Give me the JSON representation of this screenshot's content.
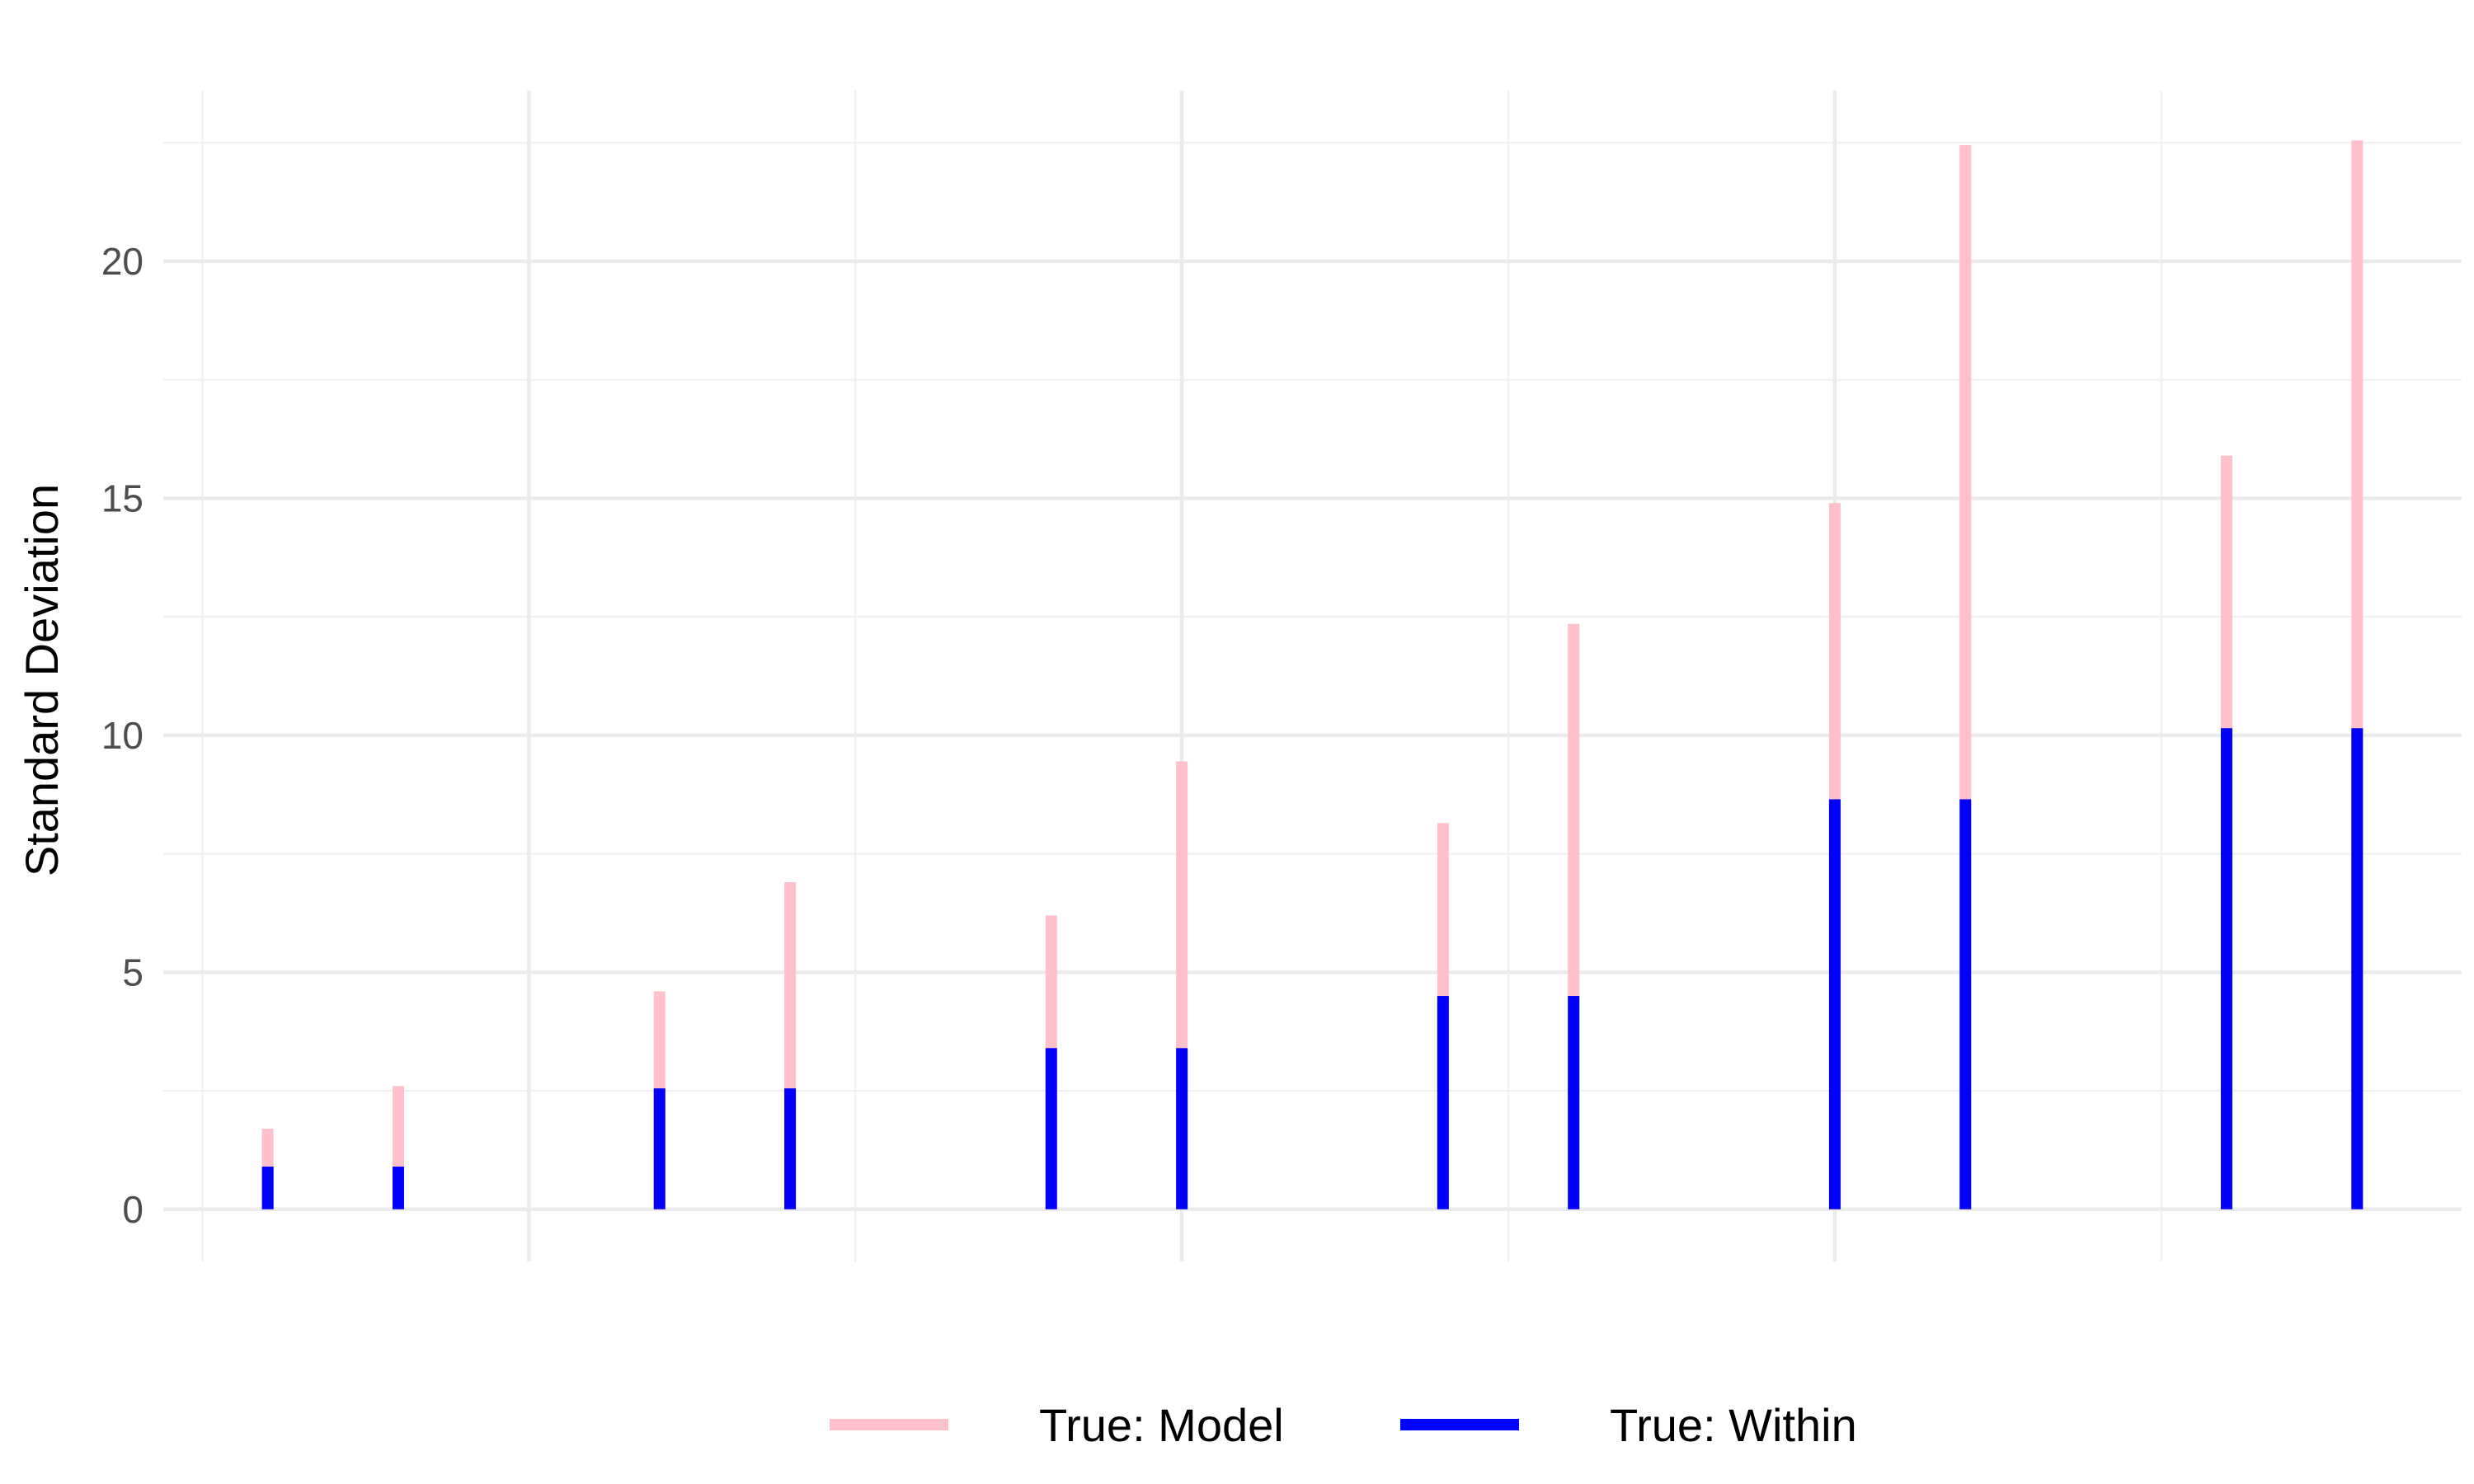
{
  "chart_data": {
    "type": "bar",
    "title": "",
    "xlabel": "",
    "ylabel": "Standard Deviation",
    "ylim": [
      -1.1,
      23.6
    ],
    "xlim": [
      0.2,
      17.8
    ],
    "yticks": [
      0,
      5,
      10,
      15,
      20
    ],
    "grid": true,
    "legend_position": "bottom",
    "x": [
      1,
      2,
      4,
      5,
      7,
      8,
      10,
      11,
      13,
      14,
      16,
      17
    ],
    "series": [
      {
        "name": "True: Model",
        "color": "#FFC0CB",
        "values": [
          1.7,
          2.6,
          4.6,
          6.9,
          6.2,
          9.45,
          8.15,
          12.35,
          14.9,
          22.45,
          15.9,
          22.55
        ]
      },
      {
        "name": "True: Within",
        "color": "#0000FF",
        "values": [
          0.9,
          0.9,
          2.55,
          2.55,
          3.4,
          3.4,
          4.5,
          4.5,
          8.65,
          8.65,
          10.15,
          10.15
        ]
      }
    ]
  }
}
